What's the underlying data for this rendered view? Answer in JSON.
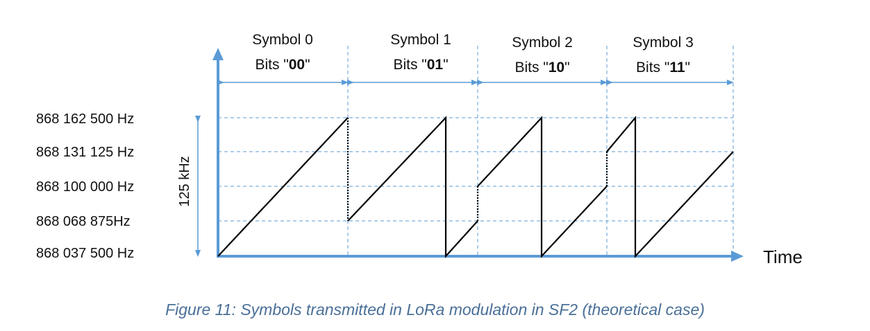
{
  "frequency_labels": [
    "868 162 500 Hz",
    "868 131 125 Hz",
    "868 100 000 Hz",
    "868 068 875Hz",
    "868 037 500 Hz"
  ],
  "bandwidth_label": "125 kHz",
  "time_label": "Time",
  "symbols": [
    {
      "title": "Symbol 0",
      "bits_prefix": "Bits \"",
      "bits": "00",
      "bits_suffix": "\""
    },
    {
      "title": "Symbol 1",
      "bits_prefix": "Bits \"",
      "bits": "01",
      "bits_suffix": "\""
    },
    {
      "title": "Symbol 2",
      "bits_prefix": "Bits \"",
      "bits": "10",
      "bits_suffix": "\""
    },
    {
      "title": "Symbol 3",
      "bits_prefix": "Bits \"",
      "bits": "11",
      "bits_suffix": "\""
    }
  ],
  "caption": "Figure 11: Symbols transmitted in LoRa modulation in SF2 (theoretical case)",
  "colors": {
    "axis": "#5b9bd5",
    "chirp": "#000000",
    "grid": "#5b9bd5",
    "caption": "#4a6f97"
  }
}
